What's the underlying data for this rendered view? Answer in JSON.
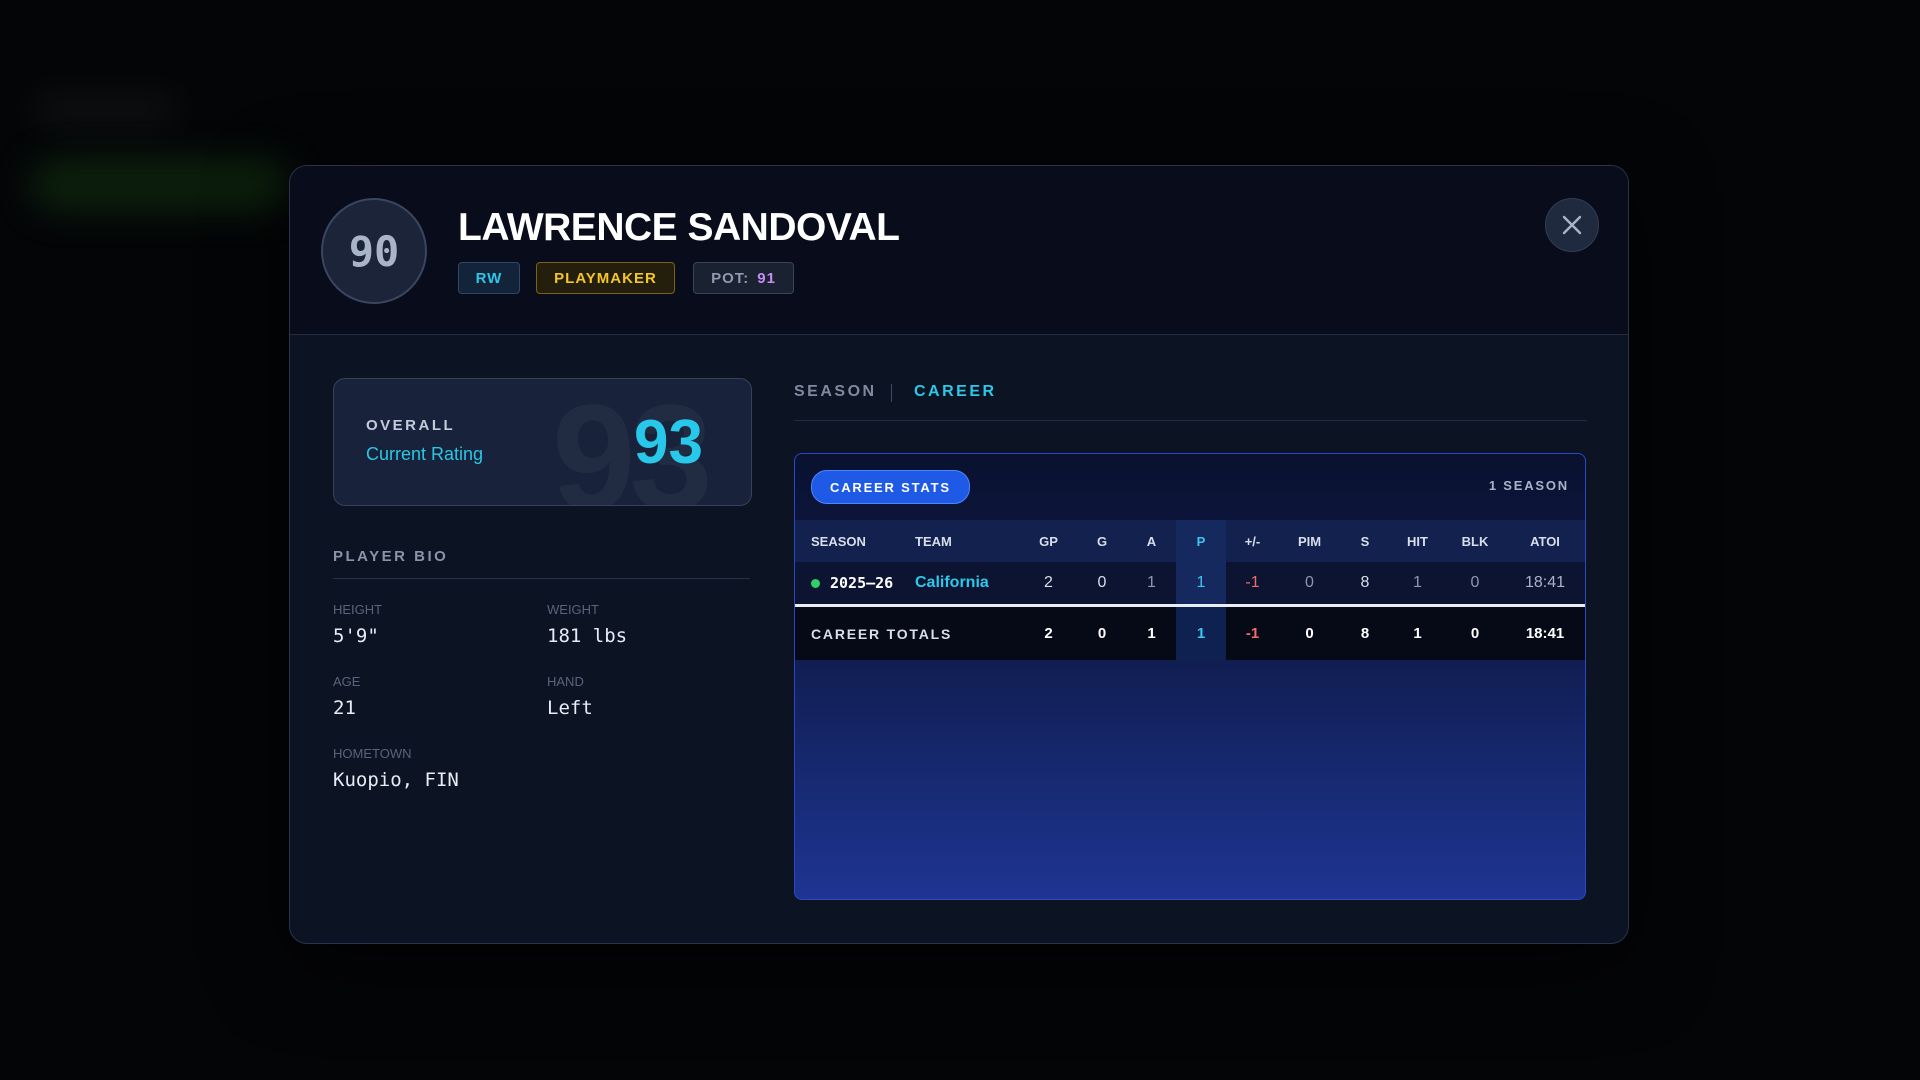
{
  "player": {
    "number": "90",
    "name": "LAWRENCE SANDOVAL",
    "position": "RW",
    "archetype": "PLAYMAKER",
    "potential_label": "POT:",
    "potential": "91"
  },
  "overall": {
    "label": "OVERALL",
    "sublabel": "Current Rating",
    "value": "93"
  },
  "bio": {
    "title": "PLAYER BIO",
    "fields": [
      {
        "label": "HEIGHT",
        "value": "5'9\""
      },
      {
        "label": "WEIGHT",
        "value": "181 lbs"
      },
      {
        "label": "AGE",
        "value": "21"
      },
      {
        "label": "HAND",
        "value": "Left"
      },
      {
        "label": "HOMETOWN",
        "value": "Kuopio, FIN"
      }
    ]
  },
  "tabs": [
    "SEASON",
    "CAREER"
  ],
  "stats": {
    "badge": "CAREER STATS",
    "count": "1 SEASON",
    "columns": [
      "SEASON",
      "TEAM",
      "GP",
      "G",
      "A",
      "P",
      "+/-",
      "PIM",
      "S",
      "HIT",
      "BLK",
      "ATOI"
    ],
    "rows": [
      [
        "2025–26",
        "California",
        2,
        0,
        1,
        1,
        -1,
        0,
        8,
        1,
        0,
        "18:41"
      ]
    ],
    "totals": {
      "label": "CAREER TOTALS",
      "values": [
        2,
        0,
        1,
        1,
        -1,
        0,
        8,
        1,
        0,
        "18:41"
      ]
    }
  }
}
